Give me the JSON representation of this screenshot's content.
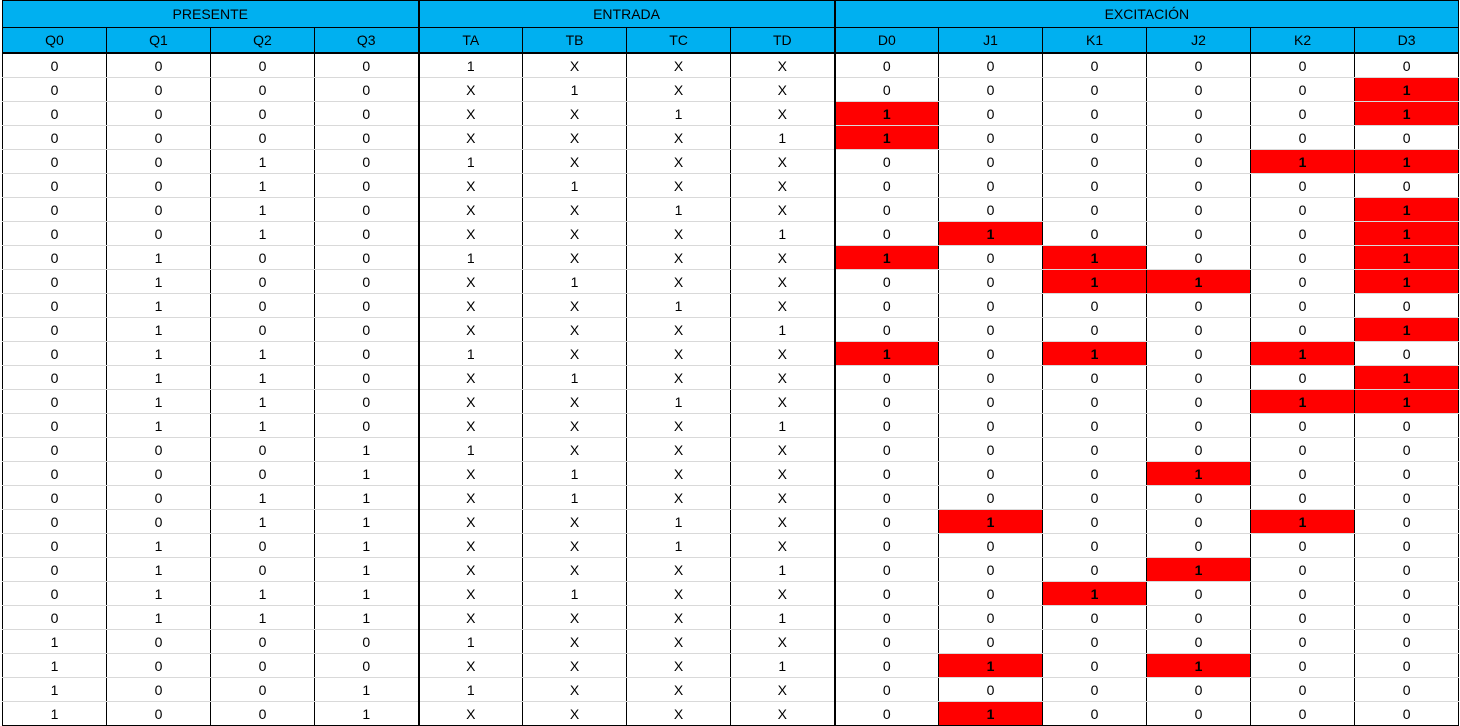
{
  "groups": [
    {
      "label": "PRESENTE",
      "span": 4
    },
    {
      "label": "ENTRADA",
      "span": 4
    },
    {
      "label": "EXCITACIÓN",
      "span": 6
    }
  ],
  "columns": [
    "Q0",
    "Q1",
    "Q2",
    "Q3",
    "TA",
    "TB",
    "TC",
    "TD",
    "D0",
    "J1",
    "K1",
    "J2",
    "K2",
    "D3"
  ],
  "highlight_color": "#ff0000",
  "header_color": "#00b0f0",
  "rows": [
    [
      "0",
      "0",
      "0",
      "0",
      "1",
      "X",
      "X",
      "X",
      "0",
      "0",
      "0",
      "0",
      "0",
      "0"
    ],
    [
      "0",
      "0",
      "0",
      "0",
      "X",
      "1",
      "X",
      "X",
      "0",
      "0",
      "0",
      "0",
      "0",
      "1"
    ],
    [
      "0",
      "0",
      "0",
      "0",
      "X",
      "X",
      "1",
      "X",
      "1",
      "0",
      "0",
      "0",
      "0",
      "1"
    ],
    [
      "0",
      "0",
      "0",
      "0",
      "X",
      "X",
      "X",
      "1",
      "1",
      "0",
      "0",
      "0",
      "0",
      "0"
    ],
    [
      "0",
      "0",
      "1",
      "0",
      "1",
      "X",
      "X",
      "X",
      "0",
      "0",
      "0",
      "0",
      "1",
      "1"
    ],
    [
      "0",
      "0",
      "1",
      "0",
      "X",
      "1",
      "X",
      "X",
      "0",
      "0",
      "0",
      "0",
      "0",
      "0"
    ],
    [
      "0",
      "0",
      "1",
      "0",
      "X",
      "X",
      "1",
      "X",
      "0",
      "0",
      "0",
      "0",
      "0",
      "1"
    ],
    [
      "0",
      "0",
      "1",
      "0",
      "X",
      "X",
      "X",
      "1",
      "0",
      "1",
      "0",
      "0",
      "0",
      "1"
    ],
    [
      "0",
      "1",
      "0",
      "0",
      "1",
      "X",
      "X",
      "X",
      "1",
      "0",
      "1",
      "0",
      "0",
      "1"
    ],
    [
      "0",
      "1",
      "0",
      "0",
      "X",
      "1",
      "X",
      "X",
      "0",
      "0",
      "1",
      "1",
      "0",
      "1"
    ],
    [
      "0",
      "1",
      "0",
      "0",
      "X",
      "X",
      "1",
      "X",
      "0",
      "0",
      "0",
      "0",
      "0",
      "0"
    ],
    [
      "0",
      "1",
      "0",
      "0",
      "X",
      "X",
      "X",
      "1",
      "0",
      "0",
      "0",
      "0",
      "0",
      "1"
    ],
    [
      "0",
      "1",
      "1",
      "0",
      "1",
      "X",
      "X",
      "X",
      "1",
      "0",
      "1",
      "0",
      "1",
      "0"
    ],
    [
      "0",
      "1",
      "1",
      "0",
      "X",
      "1",
      "X",
      "X",
      "0",
      "0",
      "0",
      "0",
      "0",
      "1"
    ],
    [
      "0",
      "1",
      "1",
      "0",
      "X",
      "X",
      "1",
      "X",
      "0",
      "0",
      "0",
      "0",
      "1",
      "1"
    ],
    [
      "0",
      "1",
      "1",
      "0",
      "X",
      "X",
      "X",
      "1",
      "0",
      "0",
      "0",
      "0",
      "0",
      "0"
    ],
    [
      "0",
      "0",
      "0",
      "1",
      "1",
      "X",
      "X",
      "X",
      "0",
      "0",
      "0",
      "0",
      "0",
      "0"
    ],
    [
      "0",
      "0",
      "0",
      "1",
      "X",
      "1",
      "X",
      "X",
      "0",
      "0",
      "0",
      "1",
      "0",
      "0"
    ],
    [
      "0",
      "0",
      "1",
      "1",
      "X",
      "1",
      "X",
      "X",
      "0",
      "0",
      "0",
      "0",
      "0",
      "0"
    ],
    [
      "0",
      "0",
      "1",
      "1",
      "X",
      "X",
      "1",
      "X",
      "0",
      "1",
      "0",
      "0",
      "1",
      "0"
    ],
    [
      "0",
      "1",
      "0",
      "1",
      "X",
      "X",
      "1",
      "X",
      "0",
      "0",
      "0",
      "0",
      "0",
      "0"
    ],
    [
      "0",
      "1",
      "0",
      "1",
      "X",
      "X",
      "X",
      "1",
      "0",
      "0",
      "0",
      "1",
      "0",
      "0"
    ],
    [
      "0",
      "1",
      "1",
      "1",
      "X",
      "1",
      "X",
      "X",
      "0",
      "0",
      "1",
      "0",
      "0",
      "0"
    ],
    [
      "0",
      "1",
      "1",
      "1",
      "X",
      "X",
      "X",
      "1",
      "0",
      "0",
      "0",
      "0",
      "0",
      "0"
    ],
    [
      "1",
      "0",
      "0",
      "0",
      "1",
      "X",
      "X",
      "X",
      "0",
      "0",
      "0",
      "0",
      "0",
      "0"
    ],
    [
      "1",
      "0",
      "0",
      "0",
      "X",
      "X",
      "X",
      "1",
      "0",
      "1",
      "0",
      "1",
      "0",
      "0"
    ],
    [
      "1",
      "0",
      "0",
      "1",
      "1",
      "X",
      "X",
      "X",
      "0",
      "0",
      "0",
      "0",
      "0",
      "0"
    ],
    [
      "1",
      "0",
      "0",
      "1",
      "X",
      "X",
      "X",
      "X",
      "0",
      "1",
      "0",
      "0",
      "0",
      "0"
    ]
  ],
  "highlighted": [
    [
      1,
      13
    ],
    [
      2,
      8
    ],
    [
      2,
      13
    ],
    [
      3,
      8
    ],
    [
      4,
      12
    ],
    [
      4,
      13
    ],
    [
      6,
      13
    ],
    [
      7,
      9
    ],
    [
      7,
      13
    ],
    [
      8,
      8
    ],
    [
      8,
      10
    ],
    [
      8,
      13
    ],
    [
      9,
      10
    ],
    [
      9,
      11
    ],
    [
      9,
      13
    ],
    [
      11,
      13
    ],
    [
      12,
      8
    ],
    [
      12,
      10
    ],
    [
      12,
      12
    ],
    [
      13,
      13
    ],
    [
      14,
      12
    ],
    [
      14,
      13
    ],
    [
      17,
      11
    ],
    [
      19,
      9
    ],
    [
      19,
      12
    ],
    [
      21,
      11
    ],
    [
      22,
      10
    ],
    [
      25,
      9
    ],
    [
      25,
      11
    ],
    [
      27,
      9
    ]
  ]
}
